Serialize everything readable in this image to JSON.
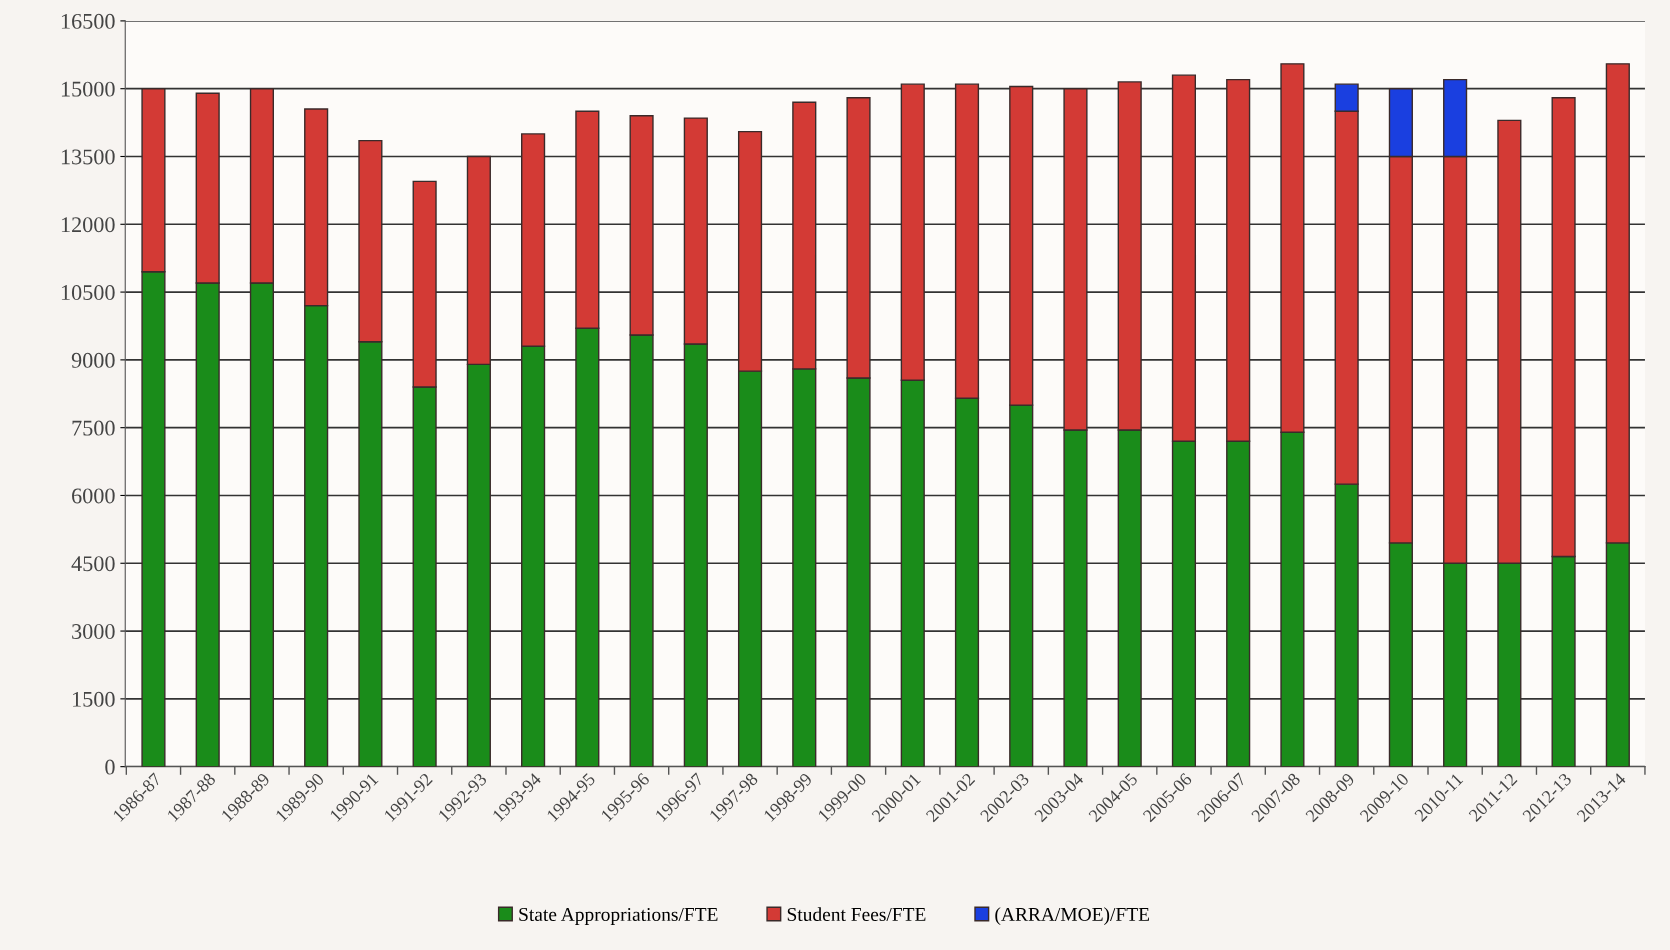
{
  "chart_data": {
    "type": "bar",
    "stacked": true,
    "categories": [
      "1986-87",
      "1987-88",
      "1988-89",
      "1989-90",
      "1990-91",
      "1991-92",
      "1992-93",
      "1993-94",
      "1994-95",
      "1995-96",
      "1996-97",
      "1997-98",
      "1998-99",
      "1999-00",
      "2000-01",
      "2001-02",
      "2002-03",
      "2003-04",
      "2004-05",
      "2005-06",
      "2006-07",
      "2007-08",
      "2008-09",
      "2009-10",
      "2010-11",
      "2011-12",
      "2012-13",
      "2013-14"
    ],
    "series": [
      {
        "name": "State Appropriations/FTE",
        "color": "#1a8c1a",
        "values": [
          10950,
          10700,
          10700,
          10200,
          9400,
          8400,
          8900,
          9300,
          9700,
          9550,
          9350,
          8750,
          8800,
          8600,
          8550,
          8150,
          8000,
          7450,
          7450,
          7200,
          7200,
          7400,
          6250,
          4950,
          4500,
          4500,
          4650,
          4950
        ]
      },
      {
        "name": "Student Fees/FTE",
        "color": "#d33a35",
        "values": [
          4050,
          4200,
          4300,
          4350,
          4450,
          4550,
          4600,
          4700,
          4800,
          4850,
          5000,
          5300,
          5900,
          6200,
          6550,
          6950,
          7050,
          7550,
          7700,
          8100,
          8000,
          8150,
          8250,
          8550,
          9000,
          9800,
          10150,
          10600
        ]
      },
      {
        "name": "(ARRA/MOE)/FTE",
        "color": "#1a3fe0",
        "values": [
          null,
          null,
          null,
          null,
          null,
          null,
          null,
          null,
          null,
          null,
          null,
          null,
          null,
          null,
          null,
          null,
          null,
          null,
          null,
          null,
          null,
          null,
          600,
          1500,
          1700,
          null,
          null,
          null
        ]
      }
    ],
    "ylim": [
      0,
      16500
    ],
    "yticks": [
      0,
      1500,
      3000,
      4500,
      6000,
      7500,
      9000,
      10500,
      12000,
      13500,
      15000,
      16500
    ],
    "grid": "y",
    "legend": "bottom"
  }
}
